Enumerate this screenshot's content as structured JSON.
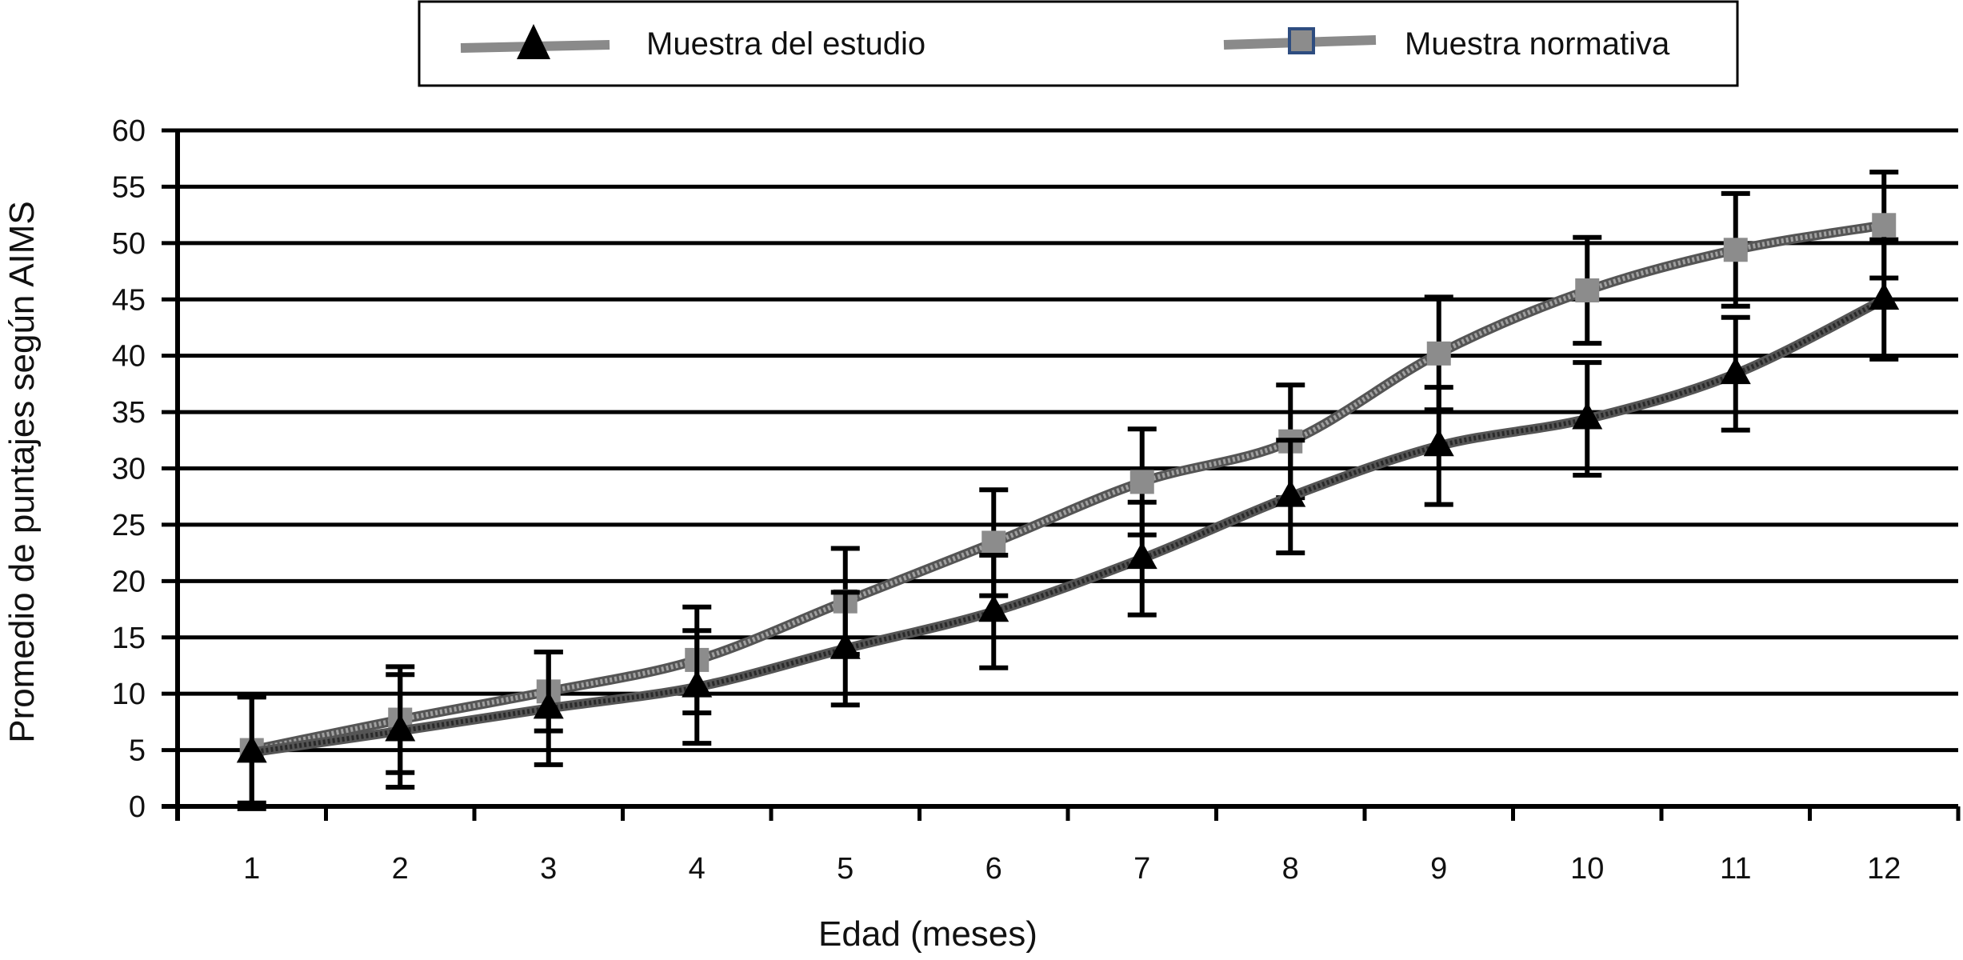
{
  "chart_data": {
    "type": "line",
    "xlabel": "Edad (meses)",
    "ylabel": "Promedio de puntajes según AIMS",
    "x": [
      1,
      2,
      3,
      4,
      5,
      6,
      7,
      8,
      9,
      10,
      11,
      12
    ],
    "x_tick_labels": [
      "1",
      "2",
      "3",
      "4",
      "5",
      "6",
      "7",
      "8",
      "9",
      "10",
      "11",
      "12"
    ],
    "y_ticks": [
      0,
      5,
      10,
      15,
      20,
      25,
      30,
      35,
      40,
      45,
      50,
      55,
      60
    ],
    "y_tick_labels": [
      "0",
      "5",
      "10",
      "15",
      "20",
      "25",
      "30",
      "35",
      "40",
      "45",
      "50",
      "55",
      "60"
    ],
    "ylim": [
      0,
      60
    ],
    "xlim": [
      0.5,
      12.5
    ],
    "grid": "horizontal",
    "legend_position": "top",
    "series": [
      {
        "name": "Muestra del estudio",
        "marker": "triangle",
        "marker_color": "#000000",
        "line_color": "#2a2a2a",
        "values": [
          4.8,
          6.7,
          8.7,
          10.6,
          14.0,
          17.3,
          22.0,
          27.5,
          32.0,
          34.4,
          38.4,
          45.0
        ],
        "error": [
          5.0,
          5.0,
          5.0,
          5.0,
          5.0,
          5.0,
          5.0,
          5.0,
          5.2,
          5.0,
          5.0,
          5.3
        ]
      },
      {
        "name": "Muestra normativa",
        "marker": "square",
        "marker_color": "#8c8c8c",
        "line_color": "#a0a0a0",
        "values": [
          5.0,
          7.7,
          10.2,
          13.0,
          18.2,
          23.4,
          28.8,
          32.4,
          40.2,
          45.8,
          49.4,
          51.6
        ],
        "error": [
          4.7,
          4.7,
          3.5,
          4.7,
          4.7,
          4.7,
          4.7,
          5.0,
          5.0,
          4.7,
          5.0,
          4.7
        ]
      }
    ]
  },
  "colors": {
    "axis": "#000000",
    "grid": "#000000",
    "error_bar": "#000000"
  }
}
